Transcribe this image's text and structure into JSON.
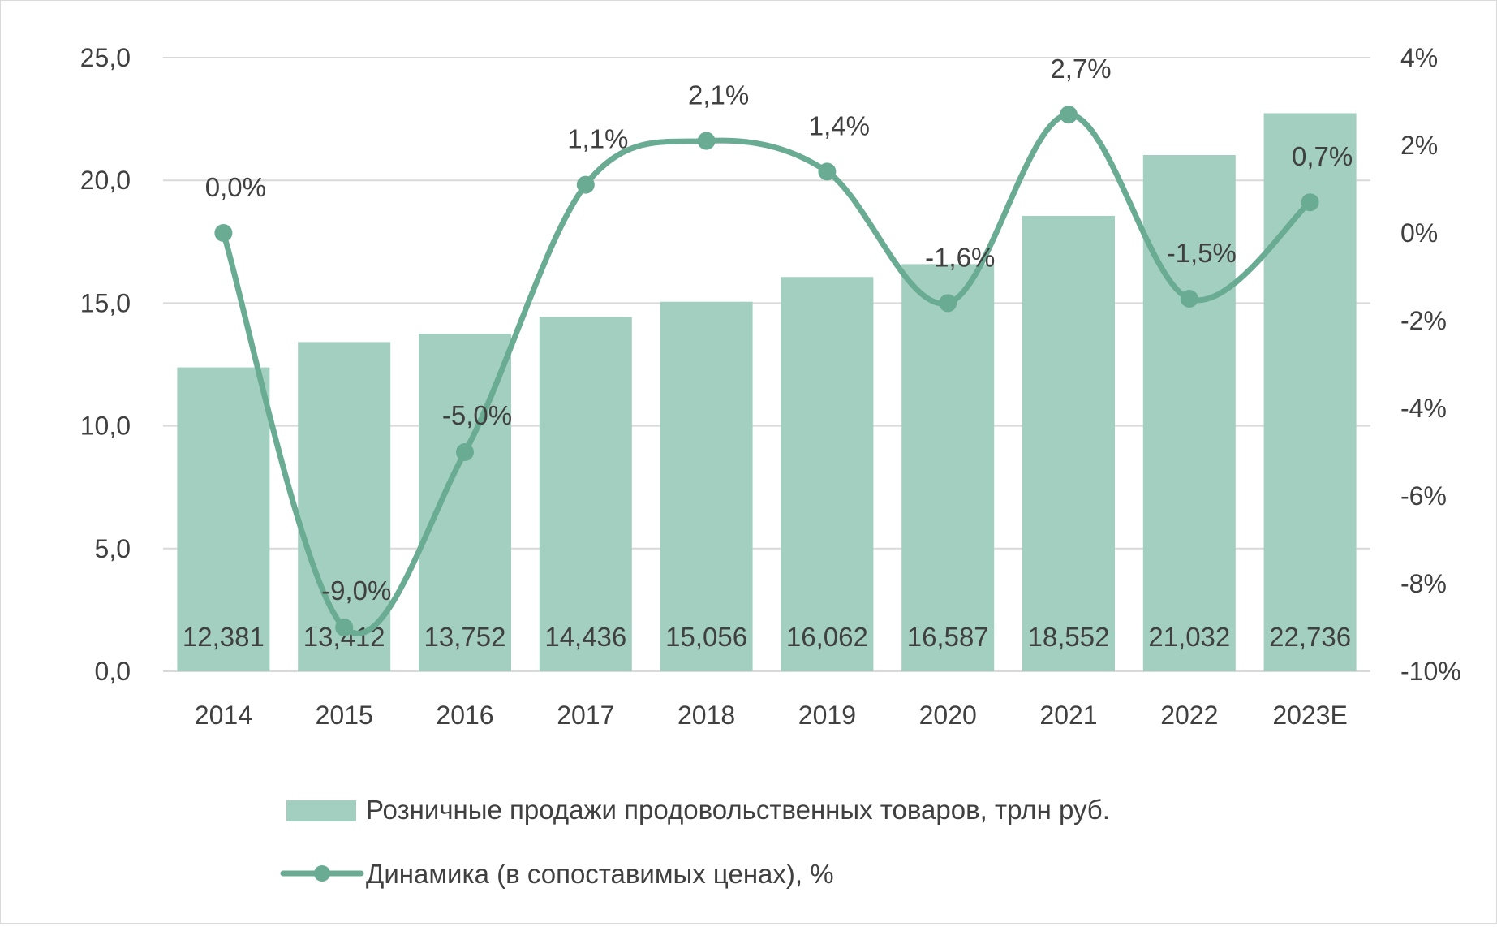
{
  "chart_data": {
    "type": "bar+line",
    "categories": [
      "2014",
      "2015",
      "2016",
      "2017",
      "2018",
      "2019",
      "2020",
      "2021",
      "2022",
      "2023E"
    ],
    "series": [
      {
        "name": "Розничные продажи продовольственных товаров, трлн руб.",
        "type": "bar",
        "axis": "left",
        "values": [
          12.381,
          13.412,
          13.752,
          14.436,
          15.056,
          16.062,
          16.587,
          18.552,
          21.032,
          22.736
        ],
        "value_labels": [
          "12,381",
          "13,412",
          "13,752",
          "14,436",
          "15,056",
          "16,062",
          "16,587",
          "18,552",
          "21,032",
          "22,736"
        ],
        "color": "#a3cfc0"
      },
      {
        "name": "Динамика (в сопоставимых ценах), %",
        "type": "line",
        "axis": "right",
        "values": [
          0.0,
          -9.0,
          -5.0,
          1.1,
          2.1,
          1.4,
          -1.6,
          2.7,
          -1.5,
          0.7
        ],
        "value_labels": [
          "0,0%",
          "-9,0%",
          "-5,0%",
          "1,1%",
          "2,1%",
          "1,4%",
          "-1,6%",
          "2,7%",
          "-1,5%",
          "0,7%"
        ],
        "color": "#6aab94",
        "smooth": true,
        "markers": true
      }
    ],
    "y_left": {
      "range": [
        0,
        25
      ],
      "ticks": [
        0,
        5,
        10,
        15,
        20,
        25
      ],
      "tick_labels": [
        "0,0",
        "5,0",
        "10,0",
        "15,0",
        "20,0",
        "25,0"
      ]
    },
    "y_right": {
      "range": [
        -10,
        4
      ],
      "ticks": [
        -10,
        -8,
        -6,
        -4,
        -2,
        0,
        2,
        4
      ],
      "tick_labels": [
        "-10%",
        "-8%",
        "-6%",
        "-4%",
        "-2%",
        "0%",
        "2%",
        "4%"
      ]
    },
    "grid": true,
    "gridline_color": "#d9d9d9",
    "text_color": "#404040",
    "legend_position": "bottom"
  }
}
